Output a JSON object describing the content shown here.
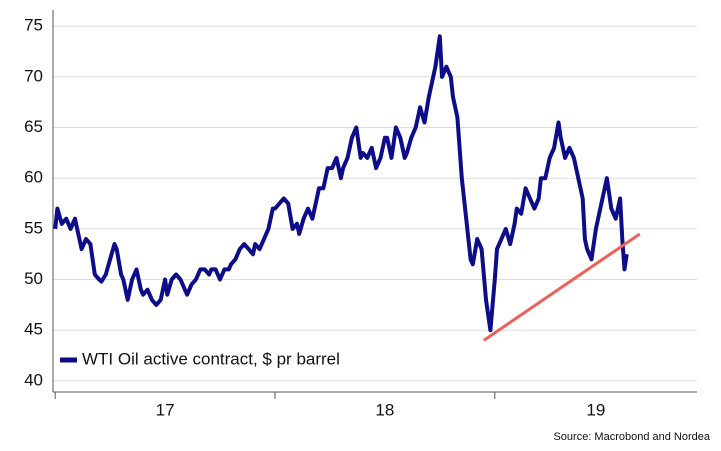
{
  "chart_data": {
    "type": "line",
    "series": [
      {
        "name": "WTI Oil active contract, $ pr barrel",
        "color": "#0d0d8a",
        "x": [
          2017,
          2017.01,
          2017.03,
          2017.05,
          2017.07,
          2017.09,
          2017.1,
          2017.12,
          2017.14,
          2017.16,
          2017.18,
          2017.2,
          2017.21,
          2017.23,
          2017.25,
          2017.27,
          2017.28,
          2017.3,
          2017.31,
          2017.33,
          2017.35,
          2017.37,
          2017.39,
          2017.4,
          2017.42,
          2017.44,
          2017.46,
          2017.48,
          2017.5,
          2017.51,
          2017.53,
          2017.55,
          2017.57,
          2017.59,
          2017.6,
          2017.62,
          2017.64,
          2017.66,
          2017.68,
          2017.7,
          2017.71,
          2017.73,
          2017.75,
          2017.77,
          2017.79,
          2017.8,
          2017.82,
          2017.84,
          2017.86,
          2017.88,
          2017.9,
          2017.91,
          2017.93,
          2017.95,
          2017.97,
          2017.99,
          2018,
          2018.02,
          2018.04,
          2018.06,
          2018.08,
          2018.1,
          2018.11,
          2018.13,
          2018.15,
          2018.17,
          2018.19,
          2018.2,
          2018.22,
          2018.24,
          2018.26,
          2018.28,
          2018.3,
          2018.31,
          2018.33,
          2018.35,
          2018.37,
          2018.39,
          2018.4,
          2018.42,
          2018.44,
          2018.46,
          2018.48,
          2018.5,
          2018.51,
          2018.53,
          2018.55,
          2018.57,
          2018.59,
          2018.6,
          2018.62,
          2018.64,
          2018.66,
          2018.68,
          2018.7,
          2018.71,
          2018.73,
          2018.75,
          2018.76,
          2018.78,
          2018.8,
          2018.81,
          2018.83,
          2018.85,
          2018.87,
          2018.89,
          2018.9,
          2018.92,
          2018.94,
          2018.96,
          2018.98,
          2019,
          2019.01,
          2019.03,
          2019.05,
          2019.07,
          2019.09,
          2019.1,
          2019.12,
          2019.14,
          2019.16,
          2019.18,
          2019.2,
          2019.21,
          2019.23,
          2019.25,
          2019.27,
          2019.29,
          2019.3,
          2019.32,
          2019.34,
          2019.36,
          2019.38,
          2019.4,
          2019.41,
          2019.42,
          2019.44,
          2019.46,
          2019.48,
          2019.5,
          2019.51,
          2019.53,
          2019.55,
          2019.57,
          2019.58,
          2019.59,
          2019.6
        ],
        "values": [
          55,
          57,
          55.5,
          56,
          55,
          56,
          55,
          53,
          54,
          53.5,
          50.5,
          50,
          49.8,
          50.5,
          52,
          53.5,
          53,
          50.5,
          50,
          48,
          50,
          51,
          49,
          48.5,
          49,
          48,
          47.5,
          48,
          50,
          48.5,
          50,
          50.5,
          50,
          49,
          48.5,
          49.5,
          50,
          51,
          51,
          50.5,
          51,
          51,
          50,
          51,
          51,
          51.5,
          52,
          53,
          53.5,
          53,
          52.5,
          53.5,
          53,
          54,
          55,
          57,
          57,
          57.5,
          58,
          57.5,
          55,
          55.5,
          54.5,
          56,
          57,
          56,
          58,
          59,
          59,
          61,
          61,
          62,
          60,
          61,
          62,
          64,
          65,
          62,
          62.5,
          62,
          63,
          61,
          62,
          64,
          64,
          62,
          65,
          64,
          62,
          62.5,
          64,
          65,
          67,
          65.5,
          68,
          69,
          71,
          74,
          70,
          71,
          70,
          68,
          66,
          60,
          56,
          52,
          51.5,
          54,
          53,
          48,
          45,
          50,
          53,
          54,
          55,
          53.5,
          55.5,
          57,
          56.5,
          59,
          58,
          57,
          58,
          60,
          60,
          62,
          63,
          65.5,
          64,
          62,
          63,
          62,
          60,
          58,
          54,
          53,
          52,
          55,
          57,
          59,
          60,
          57,
          56,
          58,
          54,
          51,
          52.5
        ]
      }
    ],
    "trendline": {
      "color": "#f0605a",
      "x": [
        2018.95,
        2019.66
      ],
      "y": [
        44,
        54.5
      ]
    },
    "xlim": [
      2016.99,
      2019.92
    ],
    "xticks": [
      {
        "value": 2017,
        "label": "17"
      },
      {
        "value": 2018,
        "label": "18"
      },
      {
        "value": 2019,
        "label": "19"
      }
    ],
    "ylim": [
      38.9,
      76.6
    ],
    "yticks": [
      40,
      45,
      50,
      55,
      60,
      65,
      70,
      75
    ],
    "grid": true,
    "legend": "lower left",
    "source": "Source: Macrobond and Nordea"
  }
}
